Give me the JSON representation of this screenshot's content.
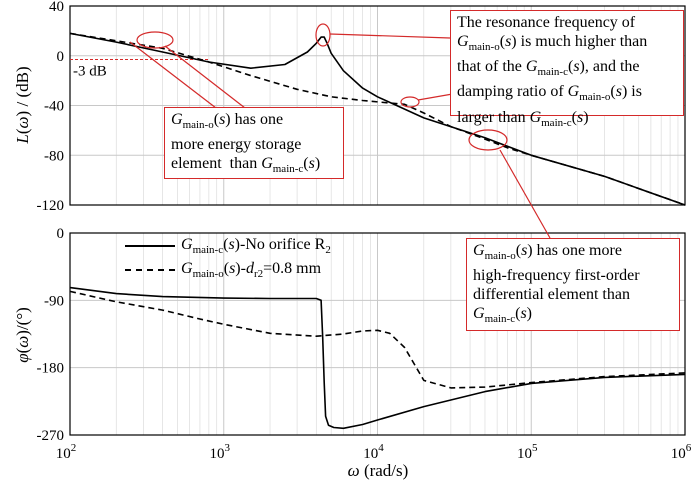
{
  "chart_data": [
    {
      "type": "line",
      "ylabel": "L(ω) / (dB)",
      "xscale": "log",
      "xlim": [
        100,
        1000000
      ],
      "ylim": [
        -120,
        40
      ],
      "yticks": [
        "40",
        "0",
        "-40",
        "-80",
        "-120"
      ],
      "reference": {
        "label": "-3 dB",
        "y": -3,
        "color": "#d42a2a"
      },
      "series": [
        {
          "name": "Gmain-c(s)-No orifice R2",
          "style": "solid",
          "x": [
            100,
            200,
            400,
            800,
            1500,
            2500,
            3500,
            4000,
            4300,
            4500,
            4700,
            5000,
            6000,
            8000,
            10000,
            20000,
            50000,
            100000,
            300000,
            1000000
          ],
          "y": [
            18,
            11,
            3,
            -5,
            -10,
            -7,
            3,
            10,
            15,
            15,
            10,
            2,
            -12,
            -26,
            -33,
            -50,
            -66,
            -80,
            -97,
            -120
          ]
        },
        {
          "name": "Gmain-o(s)-dr2=0.8 mm",
          "style": "dashed",
          "x": [
            100,
            200,
            400,
            800,
            1500,
            3000,
            5000,
            8000,
            12000,
            15000,
            20000,
            30000,
            50000,
            70000,
            100000,
            300000,
            1000000
          ],
          "y": [
            18,
            12,
            6,
            -5,
            -16,
            -27,
            -33,
            -36,
            -38,
            -39,
            -46,
            -57,
            -67,
            -74,
            -80,
            -97,
            -120
          ]
        }
      ]
    },
    {
      "type": "line",
      "xlabel": "ω (rad/s)",
      "ylabel": "φ(ω)/(°)",
      "xscale": "log",
      "xlim": [
        100,
        1000000
      ],
      "ylim": [
        -270,
        0
      ],
      "yticks": [
        "0",
        "-90",
        "-180",
        "-270"
      ],
      "xticks": [
        "10^2",
        "10^3",
        "10^4",
        "10^5",
        "10^6"
      ],
      "series": [
        {
          "name": "Gmain-c(s)-No orifice R2",
          "style": "solid",
          "x": [
            100,
            200,
            400,
            1000,
            2000,
            4000,
            4300,
            4400,
            4500,
            4600,
            4800,
            5200,
            6000,
            8000,
            10000,
            20000,
            50000,
            100000,
            300000,
            1000000
          ],
          "y": [
            -73,
            -81,
            -85,
            -87,
            -87.5,
            -87.5,
            -90,
            -140,
            -200,
            -245,
            -257,
            -260,
            -261,
            -256,
            -250,
            -232,
            -212,
            -201,
            -193,
            -189
          ]
        },
        {
          "name": "Gmain-o(s)-dr2=0.8 mm",
          "style": "dashed",
          "x": [
            100,
            200,
            400,
            700,
            1000,
            2000,
            4000,
            6000,
            8000,
            10000,
            12000,
            15000,
            20000,
            30000,
            50000,
            100000,
            300000,
            1000000
          ],
          "y": [
            -78,
            -92,
            -103,
            -115,
            -122,
            -134,
            -138,
            -135,
            -131,
            -130,
            -134,
            -153,
            -197,
            -207,
            -206,
            -200,
            -192,
            -187
          ]
        }
      ]
    }
  ],
  "legend": {
    "items": [
      {
        "name": "Gmain-c(s)",
        "suffix": "-No orifice R2",
        "style": "solid"
      },
      {
        "name": "Gmain-o(s)",
        "suffix": "-dr2=0.8 mm",
        "style": "dashed"
      }
    ]
  },
  "annotations": {
    "resonance": [
      "The  resonance frequency of",
      "Gmain-o(s) is much higher than",
      "that of the Gmain-c(s), and the",
      "damping ratio of Gmain-o(s) is",
      "larger than Gmain-c(s)"
    ],
    "storage": [
      "Gmain-o(s) has one",
      "more energy storage",
      "element  than Gmain-c(s)"
    ],
    "differential": [
      "Gmain-o(s) has one more",
      "high-frequency first-order",
      "differential element than",
      "Gmain-c(s)"
    ]
  },
  "colors": {
    "annotation": "#d42a2a",
    "curve": "#000000",
    "grid": "#dcdcdc"
  }
}
